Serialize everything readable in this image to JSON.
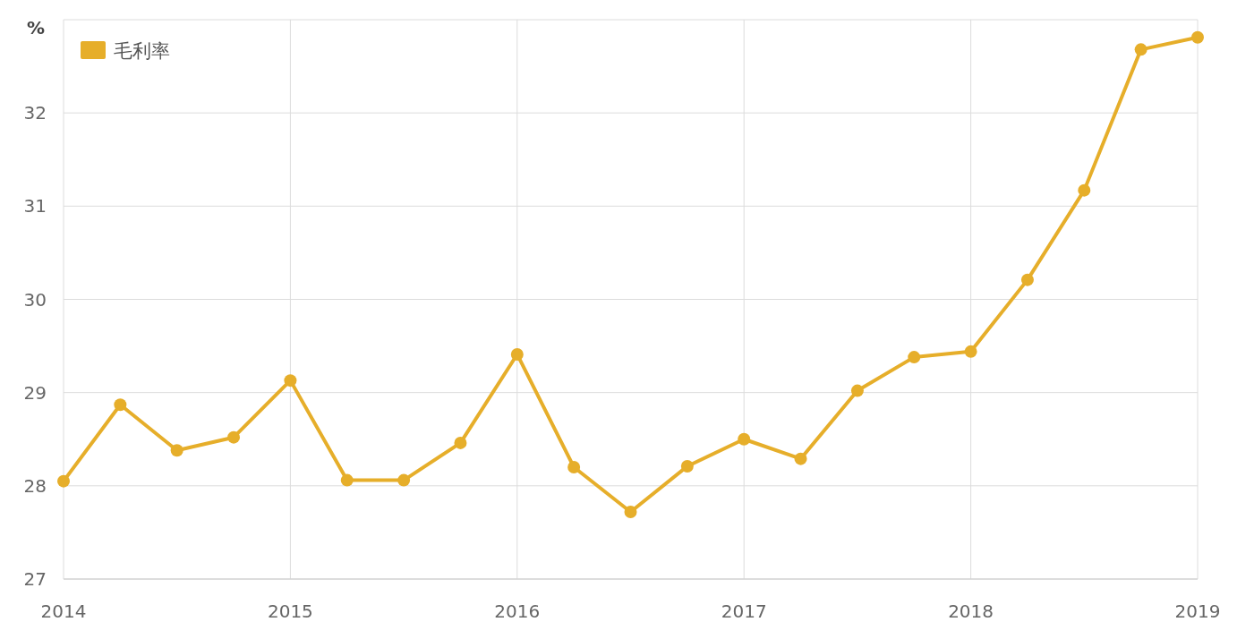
{
  "chart_data": {
    "type": "line",
    "ylabel": "%",
    "x": [
      "2014-01",
      "2014-04",
      "2014-07",
      "2014-10",
      "2015-01",
      "2015-04",
      "2015-07",
      "2015-10",
      "2016-01",
      "2016-04",
      "2016-07",
      "2016-10",
      "2017-01",
      "2017-04",
      "2017-07",
      "2017-10",
      "2018-01",
      "2018-04",
      "2018-07",
      "2018-10",
      "2019-01"
    ],
    "series": [
      {
        "name": "毛利率",
        "color": "#e6ae2a",
        "values": [
          28.05,
          28.87,
          28.38,
          28.52,
          29.13,
          28.06,
          28.06,
          28.46,
          29.41,
          28.2,
          27.72,
          28.21,
          28.5,
          28.29,
          29.02,
          29.38,
          29.44,
          30.21,
          31.17,
          32.68,
          32.81
        ]
      }
    ],
    "xlim": [
      "2014-01",
      "2019-01"
    ],
    "xticks": [
      {
        "value": "2014-01",
        "label": "2014"
      },
      {
        "value": "2015-01",
        "label": "2015"
      },
      {
        "value": "2016-01",
        "label": "2016"
      },
      {
        "value": "2017-01",
        "label": "2017"
      },
      {
        "value": "2018-01",
        "label": "2018"
      },
      {
        "value": "2019-01",
        "label": "2019"
      }
    ],
    "ylim": [
      27,
      33
    ],
    "yticks": [
      27,
      28,
      29,
      30,
      31,
      32,
      {
        "value": 33,
        "label": null
      }
    ],
    "grid": true,
    "legend": "top left",
    "marker": "circle",
    "line_style": "solid"
  }
}
